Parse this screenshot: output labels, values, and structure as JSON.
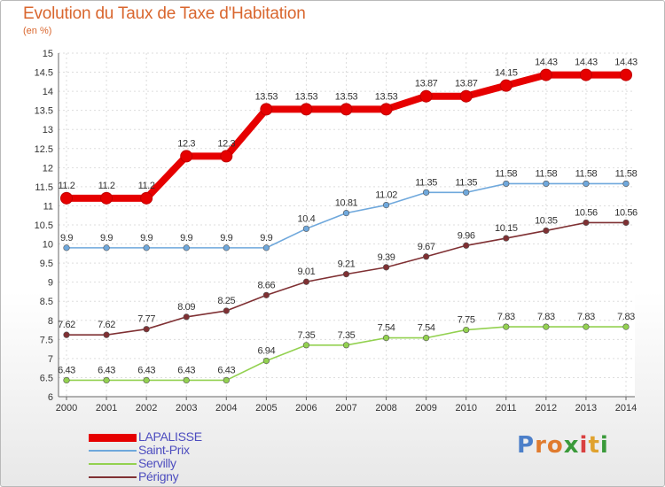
{
  "chart_data": {
    "type": "line",
    "title": "Evolution du Taux de Taxe d'Habitation",
    "subtitle": "(en %)",
    "x": [
      "2000",
      "2001",
      "2002",
      "2003",
      "2004",
      "2005",
      "2006",
      "2007",
      "2008",
      "2009",
      "2010",
      "2011",
      "2012",
      "2013",
      "2014"
    ],
    "ylim": [
      6,
      15
    ],
    "yticks": [
      "6",
      "6.5",
      "7",
      "7.5",
      "8",
      "8.5",
      "9",
      "9.5",
      "10",
      "10.5",
      "11",
      "11.5",
      "12",
      "12.5",
      "13",
      "13.5",
      "14",
      "14.5",
      "15"
    ],
    "grid": true,
    "legend_position": "bottom-left",
    "series": [
      {
        "name": "LAPALISSE",
        "color": "#e60000",
        "values": [
          11.2,
          11.2,
          11.2,
          12.3,
          12.3,
          13.53,
          13.53,
          13.53,
          13.53,
          13.87,
          13.87,
          14.15,
          14.43,
          14.43,
          14.43
        ],
        "labels": [
          "11.2",
          "11.2",
          "11.2",
          "12.3",
          "12.3",
          "13.53",
          "13.53",
          "13.53",
          "13.53",
          "13.87",
          "13.87",
          "14.15",
          "14.43",
          "14.43",
          "14.43"
        ]
      },
      {
        "name": "Saint-Prix",
        "color": "#6fa8dc",
        "values": [
          9.9,
          9.9,
          9.9,
          9.9,
          9.9,
          9.9,
          10.4,
          10.81,
          11.02,
          11.35,
          11.35,
          11.58,
          11.58,
          11.58,
          11.58
        ],
        "labels": [
          "9.9",
          "9.9",
          "9.9",
          "9.9",
          "9.9",
          "9.9",
          "10.4",
          "10.81",
          "11.02",
          "11.35",
          "11.35",
          "11.58",
          "11.58",
          "11.58",
          "11.58"
        ]
      },
      {
        "name": "Servilly",
        "color": "#93d150",
        "values": [
          6.43,
          6.43,
          6.43,
          6.43,
          6.43,
          6.94,
          7.35,
          7.35,
          7.54,
          7.54,
          7.75,
          7.83,
          7.83,
          7.83,
          7.83
        ],
        "labels": [
          "6.43",
          "6.43",
          "6.43",
          "6.43",
          "6.43",
          "6.94",
          "7.35",
          "7.35",
          "7.54",
          "7.54",
          "7.75",
          "7.83",
          "7.83",
          "7.83",
          "7.83"
        ]
      },
      {
        "name": "Périgny",
        "color": "#7f3033",
        "values": [
          7.62,
          7.62,
          7.77,
          8.09,
          8.25,
          8.66,
          9.01,
          9.21,
          9.39,
          9.67,
          9.96,
          10.15,
          10.35,
          10.56,
          10.56
        ],
        "labels": [
          "7.62",
          "7.62",
          "7.77",
          "8.09",
          "8.25",
          "8.66",
          "9.01",
          "9.21",
          "9.39",
          "9.67",
          "9.96",
          "10.15",
          "10.35",
          "10.56",
          "10.56"
        ]
      }
    ]
  },
  "logo": {
    "text": "Proxiti",
    "letters": [
      "P",
      "r",
      "o",
      "x",
      "i",
      "t",
      "i"
    ],
    "colors": [
      "#4c7fc9",
      "#e07b2e",
      "#e07b2e",
      "#3a9a3a",
      "#d94040",
      "#e0a22e",
      "#3a9a3a"
    ]
  }
}
